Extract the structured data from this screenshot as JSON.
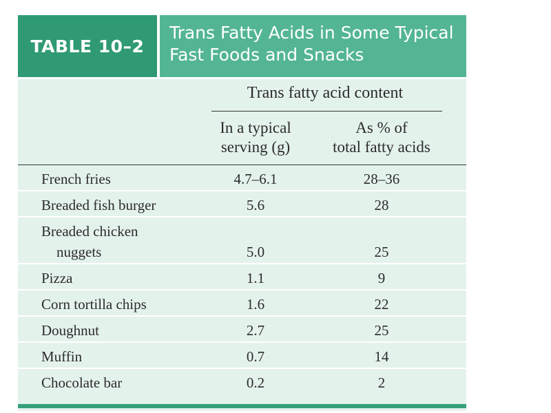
{
  "table": {
    "label": "TABLE 10–2",
    "title_lines": [
      "Trans Fatty Acids in Some Typical",
      "Fast Foods and Snacks"
    ],
    "group_heading": "Trans fatty acid content",
    "columns": [
      {
        "lines": [
          "In a typical",
          "serving (g)"
        ]
      },
      {
        "lines": [
          "As % of",
          "total fatty acids"
        ]
      }
    ],
    "rows": [
      {
        "food": "French fries",
        "grams": "4.7–6.1",
        "percent": "28–36"
      },
      {
        "food": "Breaded fish burger",
        "grams": "5.6",
        "percent": "28"
      },
      {
        "food_lines": [
          "Breaded chicken",
          "nuggets"
        ],
        "grams": "5.0",
        "percent": "25"
      },
      {
        "food": "Pizza",
        "grams": "1.1",
        "percent": "9"
      },
      {
        "food": "Corn tortilla chips",
        "grams": "1.6",
        "percent": "22"
      },
      {
        "food": "Doughnut",
        "grams": "2.7",
        "percent": "25"
      },
      {
        "food": "Muffin",
        "grams": "0.7",
        "percent": "14"
      },
      {
        "food": "Chocolate bar",
        "grams": "0.2",
        "percent": "2"
      }
    ]
  },
  "colors": {
    "header_dark": "#2f9a73",
    "header_light": "#53b593",
    "table_background": "#e4f2ec",
    "bottom_bar": "#34a07a"
  }
}
